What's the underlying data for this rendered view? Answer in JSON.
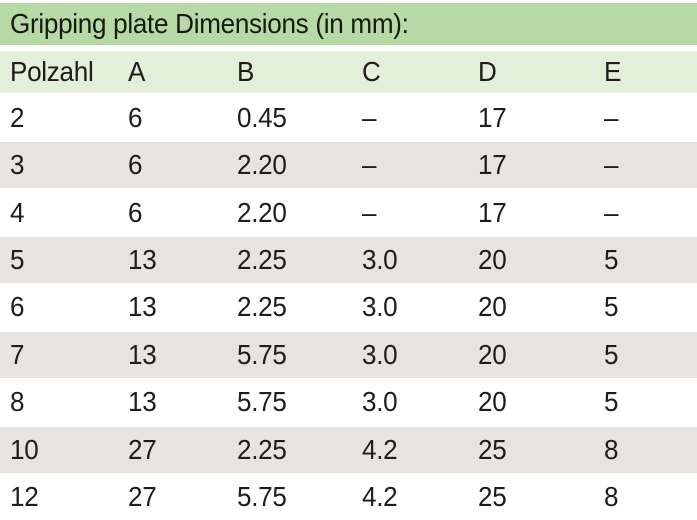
{
  "table": {
    "title": "Gripping plate Dimensions (in mm):",
    "columns": [
      "Polzahl",
      "A",
      "B",
      "C",
      "D",
      "E"
    ],
    "rows": [
      [
        "2",
        "6",
        "0.45",
        "–",
        "17",
        "–"
      ],
      [
        "3",
        "6",
        "2.20",
        "–",
        "17",
        "–"
      ],
      [
        "4",
        "6",
        "2.20",
        "–",
        "17",
        "–"
      ],
      [
        "5",
        "13",
        "2.25",
        "3.0",
        "20",
        "5"
      ],
      [
        "6",
        "13",
        "2.25",
        "3.0",
        "20",
        "5"
      ],
      [
        "7",
        "13",
        "5.75",
        "3.0",
        "20",
        "5"
      ],
      [
        "8",
        "13",
        "5.75",
        "3.0",
        "20",
        "5"
      ],
      [
        "10",
        "27",
        "2.25",
        "4.2",
        "25",
        "8"
      ],
      [
        "12",
        "27",
        "5.75",
        "4.2",
        "25",
        "8"
      ]
    ],
    "colors": {
      "title_bar_bg": "#b6d9a6",
      "header_row_bg": "#e2efd9",
      "row_bg": "#ffffff",
      "row_alt_bg": "#e6e3e1",
      "text": "#1d1d1b"
    }
  }
}
